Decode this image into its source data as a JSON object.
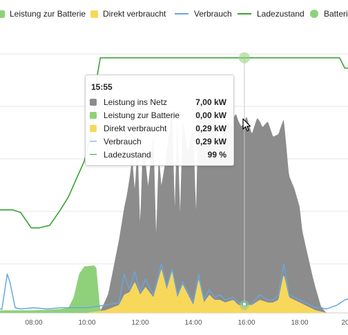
{
  "legend": [
    {
      "label": "Leistung zur Batterie",
      "kind": "box",
      "color": "#8fd17a"
    },
    {
      "label": "Direkt verbraucht",
      "kind": "box",
      "color": "#f7d85a"
    },
    {
      "label": "Verbrauch",
      "kind": "line",
      "color": "#6aa7d8"
    },
    {
      "label": "Ladezustand",
      "kind": "line",
      "color": "#3aa334"
    },
    {
      "label": "Batteries",
      "kind": "dot",
      "color": "#8fd17a"
    }
  ],
  "x_ticks": [
    "08:00",
    "10:00",
    "12:00",
    "14:00",
    "16:00",
    "18:00",
    "20"
  ],
  "tooltip": {
    "time": "15:55",
    "rows": [
      {
        "label": "Leistung ins Netz",
        "value": "7,00 kW",
        "color": "#8c8c8c",
        "kind": "box"
      },
      {
        "label": "Leistung zur Batterie",
        "value": "0,00 kW",
        "color": "#8fd17a",
        "kind": "box"
      },
      {
        "label": "Direkt verbraucht",
        "value": "0,29 kW",
        "color": "#f7d85a",
        "kind": "box"
      },
      {
        "label": "Verbrauch",
        "value": "0,29 kW",
        "color": "#6aa7d8",
        "kind": "line"
      },
      {
        "label": "Ladezustand",
        "value": "99 %",
        "color": "#3aa334",
        "kind": "line"
      }
    ]
  },
  "colors": {
    "grid": "#e6e6e6",
    "netz": "#8c8c8c",
    "batterie": "#8fd17a",
    "direkt": "#f7d85a",
    "verbrauch": "#6aa7d8",
    "ladezustand": "#3aa334",
    "crosshair": "#c8c8c8"
  },
  "chart_data": {
    "type": "area",
    "x_unit": "hour",
    "x_range": [
      6.6,
      20.0
    ],
    "series": [
      {
        "name": "Ladezustand",
        "unit": "%",
        "x": [
          6.6,
          6.9,
          7.2,
          7.5,
          7.7,
          7.9,
          8.2,
          8.6,
          9.0,
          9.3,
          9.6,
          9.9,
          10.1,
          10.25,
          10.35,
          10.5,
          11.0,
          12.0,
          13.0,
          14.0,
          15.0,
          15.9,
          16.5,
          17.0,
          17.5,
          18.0,
          18.5,
          19.0,
          19.5,
          19.7,
          20.0
        ],
        "y": [
          40,
          40,
          40,
          39,
          36,
          33,
          33,
          34,
          40,
          45,
          52,
          59,
          67,
          75,
          90,
          99,
          99,
          99,
          99,
          99,
          99,
          99,
          99,
          99,
          99,
          99,
          99,
          99,
          99,
          95,
          95
        ]
      },
      {
        "name": "Leistung ins Netz",
        "unit": "kW",
        "x": [
          6.6,
          9.0,
          10.3,
          10.5,
          10.8,
          11.2,
          11.5,
          11.7,
          11.8,
          11.9,
          12.0,
          12.1,
          12.3,
          12.5,
          12.6,
          12.7,
          12.8,
          13.0,
          13.2,
          13.3,
          13.4,
          13.5,
          13.6,
          13.8,
          14.0,
          14.1,
          14.2,
          14.5,
          14.8,
          15.0,
          15.2,
          15.4,
          15.6,
          15.8,
          15.9,
          16.0,
          16.2,
          16.4,
          16.6,
          16.8,
          17.0,
          17.2,
          17.4,
          17.6,
          17.8,
          18.0,
          18.1,
          18.3,
          18.5,
          18.8,
          19.0,
          20.0
        ],
        "y": [
          0,
          0,
          0,
          0,
          0.6,
          2.5,
          3.8,
          5.0,
          3.5,
          5.6,
          2.6,
          5.7,
          4.0,
          6.3,
          2.0,
          4.8,
          3.2,
          5.3,
          6.2,
          3.0,
          6.9,
          3.0,
          6.3,
          5.5,
          6.9,
          3.0,
          7.0,
          7.2,
          7.4,
          5.9,
          7.1,
          6.7,
          7.3,
          6.9,
          7.0,
          7.3,
          6.6,
          7.1,
          6.7,
          7.0,
          6.4,
          6.4,
          6.0,
          4.7,
          4.3,
          3.7,
          2.8,
          2.0,
          1.2,
          0.2,
          0,
          0
        ]
      },
      {
        "name": "Leistung zur Batterie",
        "unit": "kW",
        "x": [
          6.6,
          7.5,
          8.0,
          8.5,
          9.0,
          9.3,
          9.5,
          9.7,
          9.9,
          10.1,
          10.25,
          10.35,
          10.5,
          12.0,
          20.0
        ],
        "y": [
          0.1,
          0.1,
          0.1,
          0.12,
          0.15,
          0.2,
          0.6,
          1.5,
          1.8,
          1.8,
          1.8,
          1.7,
          0,
          0,
          0
        ]
      },
      {
        "name": "Direkt verbraucht",
        "unit": "kW",
        "x": [
          6.6,
          9.0,
          10.0,
          10.7,
          11.2,
          11.4,
          11.6,
          11.8,
          12.0,
          12.2,
          12.5,
          12.8,
          13.0,
          13.2,
          13.4,
          13.6,
          14.0,
          14.2,
          14.4,
          14.6,
          14.8,
          15.0,
          15.2,
          15.5,
          15.7,
          16.0,
          16.2,
          16.5,
          16.8,
          17.0,
          17.2,
          17.4,
          17.6,
          17.8,
          18.0,
          18.2,
          18.4,
          18.6,
          18.8,
          19.0,
          20.0
        ],
        "y": [
          0,
          0,
          0,
          0.1,
          0.3,
          0.7,
          0.8,
          1.2,
          0.7,
          1.0,
          0.6,
          1.7,
          0.9,
          1.6,
          0.6,
          1.1,
          0.3,
          1.3,
          0.4,
          0.7,
          0.5,
          0.5,
          0.4,
          0.5,
          0.3,
          0.3,
          0.3,
          0.5,
          0.4,
          0.4,
          0.5,
          1.5,
          0.6,
          0.5,
          0.4,
          0.3,
          0.2,
          0.1,
          0.05,
          0,
          0
        ]
      },
      {
        "name": "Verbrauch",
        "unit": "kW",
        "x": [
          6.6,
          6.8,
          7.0,
          7.1,
          7.3,
          7.5,
          8.0,
          8.5,
          9.0,
          10.0,
          10.7,
          11.2,
          11.4,
          11.6,
          11.8,
          12.0,
          12.2,
          12.5,
          12.8,
          13.0,
          13.2,
          13.4,
          13.6,
          14.0,
          14.2,
          14.4,
          14.6,
          14.8,
          15.0,
          15.2,
          15.5,
          15.7,
          16.0,
          16.2,
          16.5,
          16.8,
          17.0,
          17.2,
          17.4,
          17.6,
          17.8,
          18.0,
          18.2,
          18.4,
          18.6,
          18.8,
          19.0,
          19.4,
          19.7,
          20.0
        ],
        "y": [
          0.15,
          0.15,
          1.5,
          1.2,
          0.2,
          0.15,
          0.2,
          0.15,
          0.2,
          0.2,
          0.3,
          0.4,
          1.5,
          0.9,
          1.6,
          0.8,
          1.3,
          0.7,
          1.9,
          1.0,
          1.7,
          0.7,
          1.2,
          0.4,
          1.5,
          0.5,
          0.9,
          0.6,
          0.7,
          0.5,
          0.6,
          0.4,
          0.3,
          0.35,
          0.7,
          0.5,
          0.5,
          0.7,
          1.9,
          0.7,
          0.6,
          0.5,
          0.4,
          0.3,
          0.2,
          0.2,
          0.15,
          0.3,
          0.5,
          0.6
        ]
      }
    ],
    "crosshair_x": 15.92,
    "xlabel": "",
    "ylabel": "",
    "grid": true,
    "legend_position": "top"
  }
}
